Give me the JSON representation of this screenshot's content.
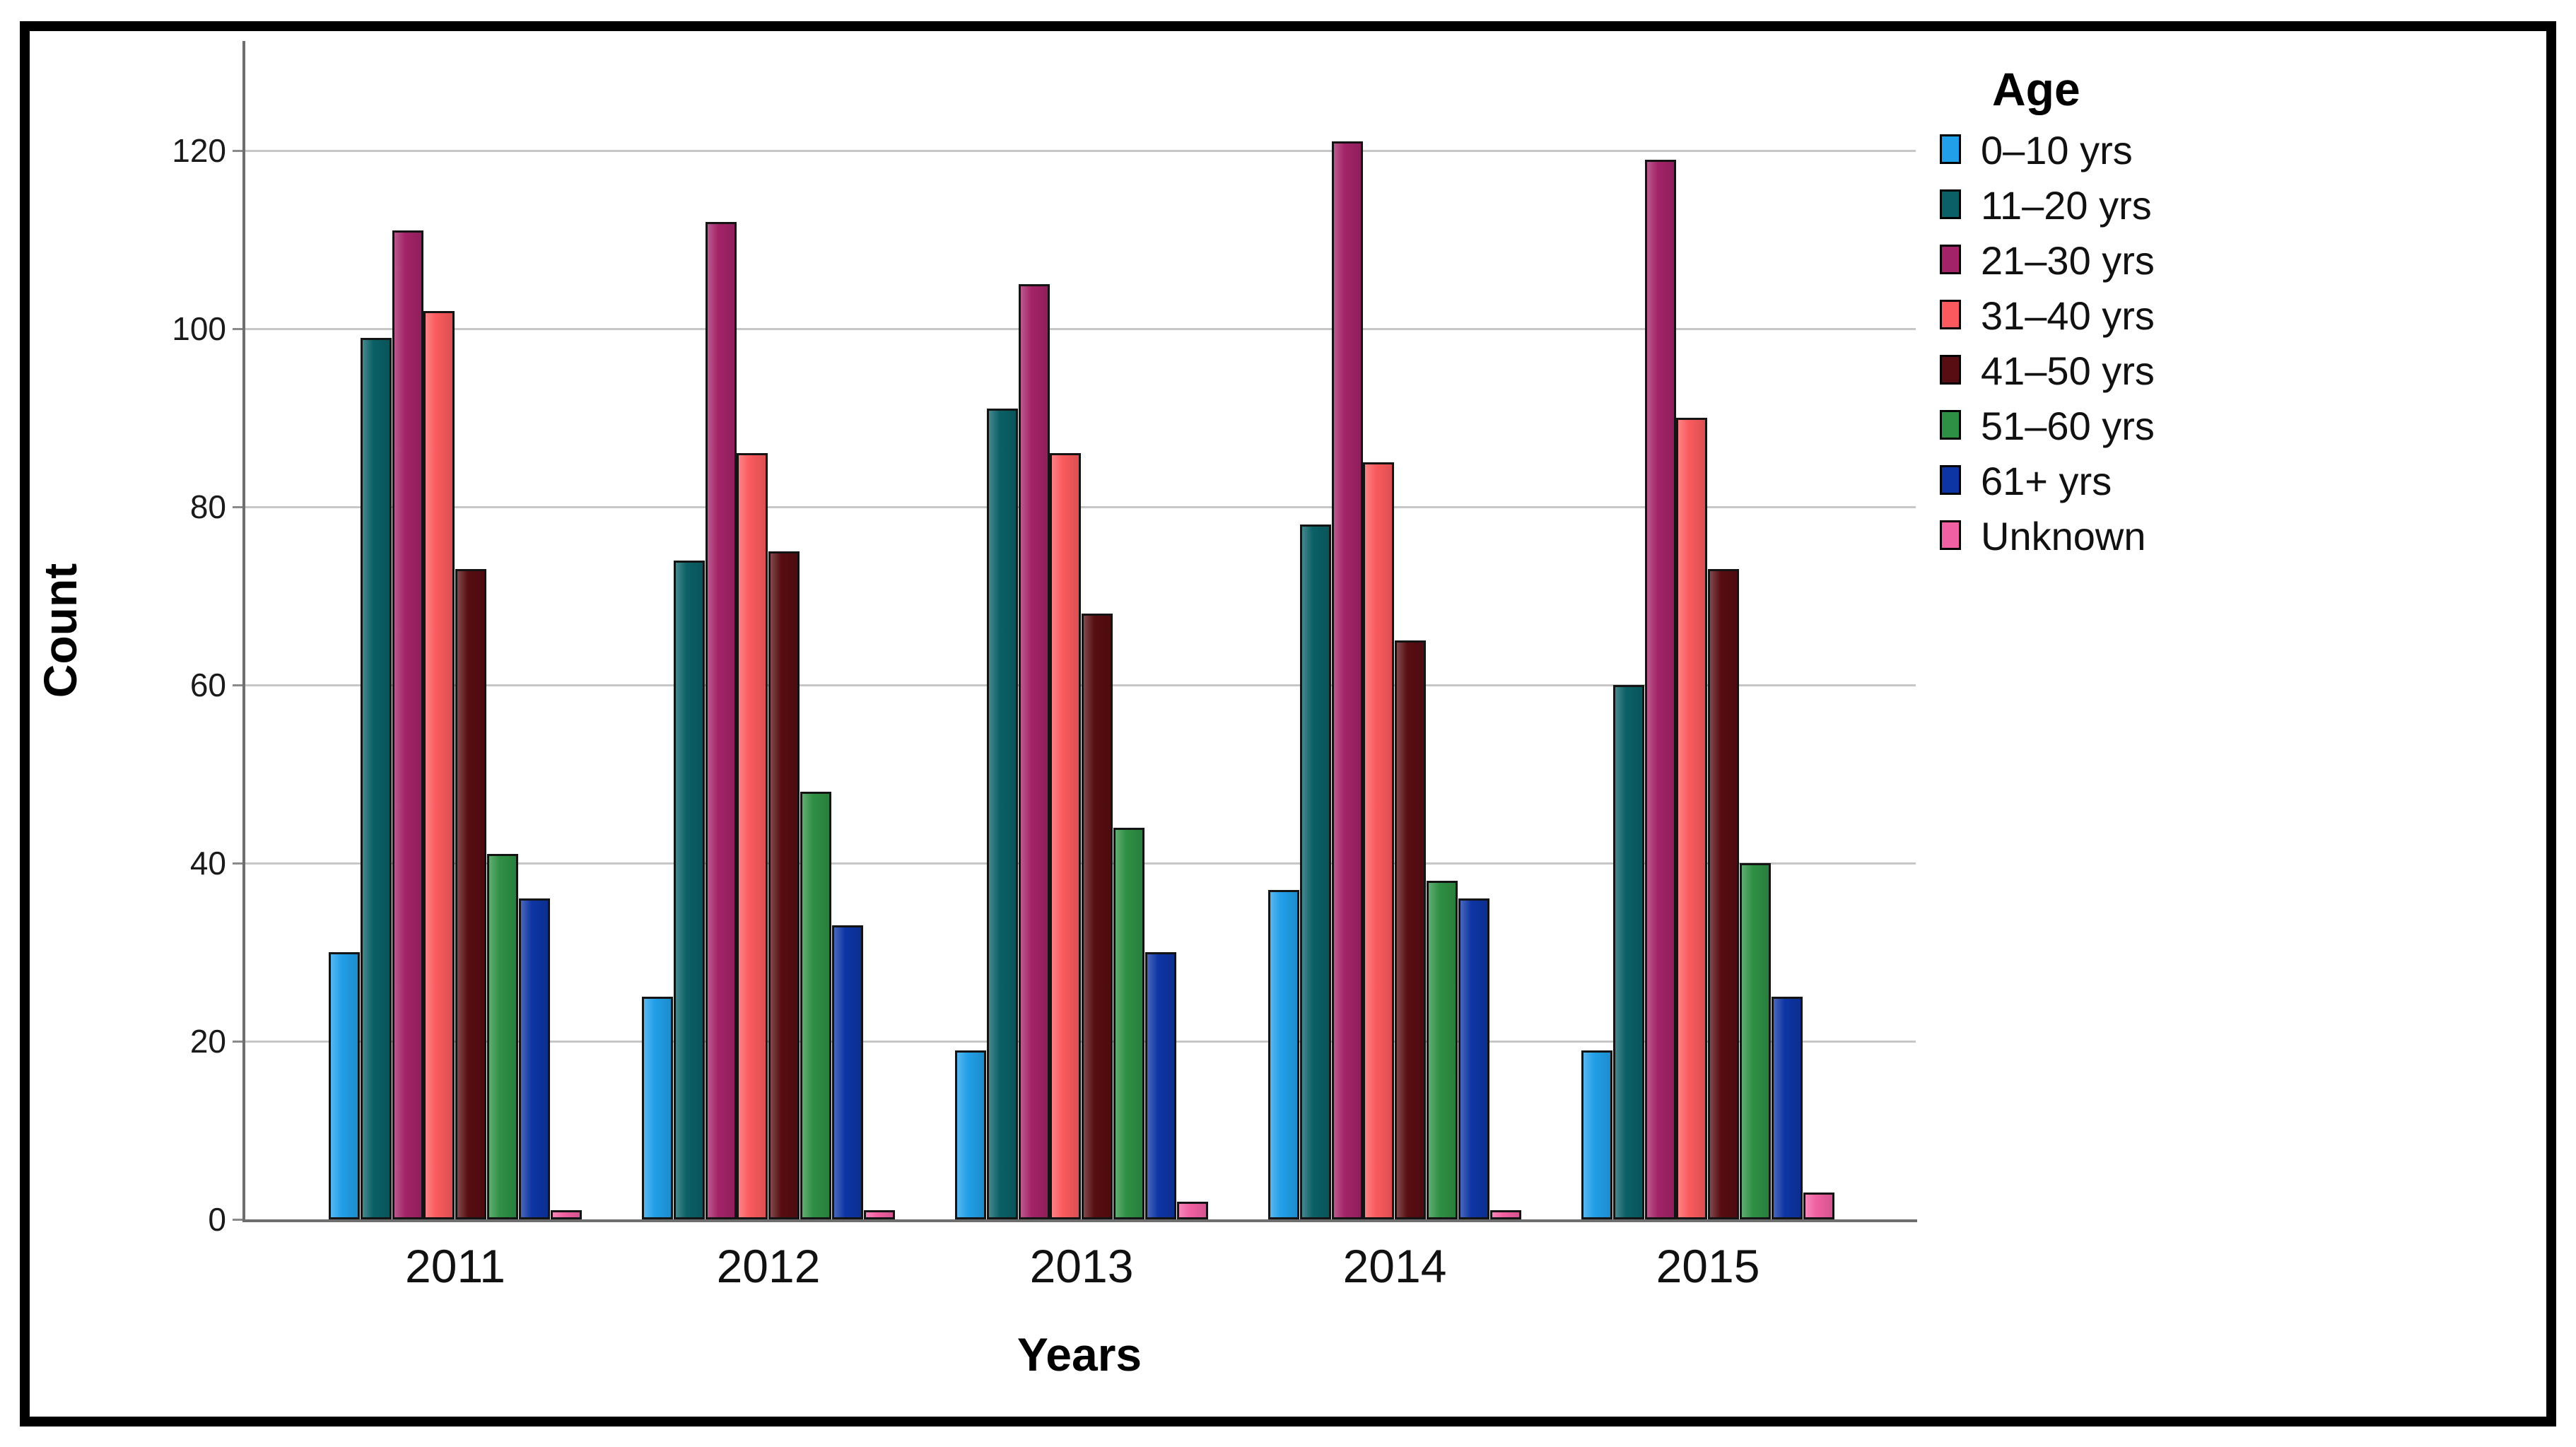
{
  "chart_data": {
    "type": "bar",
    "title": "",
    "xlabel": "Years",
    "ylabel": "Count",
    "legend_title": "Age",
    "legend_position": "right",
    "grid": "horizontal",
    "ylim": [
      0,
      132
    ],
    "y_ticks": [
      0,
      20,
      40,
      60,
      80,
      100,
      120
    ],
    "categories": [
      "2011",
      "2012",
      "2013",
      "2014",
      "2015"
    ],
    "series": [
      {
        "name": "0–10 yrs",
        "color": "#219FE8",
        "values": [
          30,
          25,
          19,
          37,
          19
        ]
      },
      {
        "name": "11–20 yrs",
        "color": "#0A6066",
        "values": [
          99,
          74,
          91,
          78,
          60
        ]
      },
      {
        "name": "21–30 yrs",
        "color": "#A32368",
        "values": [
          111,
          112,
          105,
          121,
          119
        ]
      },
      {
        "name": "31–40 yrs",
        "color": "#FA5A5D",
        "values": [
          102,
          86,
          86,
          85,
          90
        ]
      },
      {
        "name": "41–50 yrs",
        "color": "#570D12",
        "values": [
          73,
          75,
          68,
          65,
          73
        ]
      },
      {
        "name": "51–60 yrs",
        "color": "#2E9044",
        "values": [
          41,
          48,
          44,
          38,
          40
        ]
      },
      {
        "name": "61+ yrs",
        "color": "#0D35A4",
        "values": [
          36,
          33,
          30,
          36,
          25
        ]
      },
      {
        "name": "Unknown",
        "color": "#F160A2",
        "values": [
          1,
          1,
          2,
          1,
          3
        ]
      }
    ]
  }
}
